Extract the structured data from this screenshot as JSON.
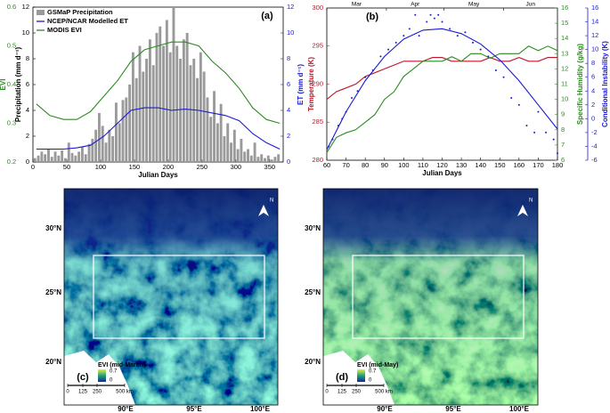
{
  "chart_data": [
    {
      "type": "bar",
      "label": "(a)",
      "xlabel": "Julian Days",
      "xlim": [
        0,
        370
      ],
      "xticks": [
        0,
        50,
        100,
        150,
        200,
        250,
        300,
        350
      ],
      "ylabel": "Precipitation (mm d⁻¹)",
      "ylim": [
        0,
        12
      ],
      "yticks": [
        0,
        2,
        4,
        6,
        8,
        10,
        12
      ],
      "y2label": "ET (mm d⁻¹)",
      "y2lim": [
        0,
        12
      ],
      "y2ticks": [
        0,
        2,
        4,
        6,
        8,
        10,
        12
      ],
      "y3label": "EVI",
      "y3lim": [
        0.2,
        0.6
      ],
      "y3ticks": [
        0.2,
        0.3,
        0.4,
        0.5,
        0.6
      ],
      "axis_colors": {
        "y": "#000000",
        "y2": "#1a1ad6",
        "y3": "#2e8b22"
      },
      "legend": "upper left",
      "series": [
        {
          "name": "GSMaP Precipitation",
          "color": "#9a9a9a",
          "mode": "bar",
          "x": [
            3,
            8,
            13,
            18,
            23,
            28,
            33,
            38,
            43,
            48,
            53,
            58,
            63,
            68,
            73,
            78,
            83,
            88,
            93,
            98,
            103,
            108,
            113,
            118,
            123,
            128,
            133,
            138,
            143,
            148,
            153,
            158,
            163,
            168,
            173,
            178,
            183,
            188,
            193,
            198,
            203,
            208,
            213,
            218,
            223,
            228,
            233,
            238,
            243,
            248,
            253,
            258,
            263,
            268,
            273,
            278,
            283,
            288,
            293,
            298,
            303,
            308,
            313,
            318,
            323,
            328,
            333,
            338,
            343,
            348,
            353,
            358,
            363
          ],
          "values": [
            0.3,
            0.5,
            0.8,
            0.6,
            1.0,
            0.4,
            0.8,
            0.5,
            0.9,
            0.3,
            1.5,
            0.7,
            0.5,
            0.8,
            1.2,
            0.6,
            1.4,
            1.8,
            2.5,
            3.8,
            2.8,
            1.5,
            2.5,
            2.0,
            4.6,
            3.0,
            4.8,
            5.0,
            6.0,
            8.5,
            6.5,
            9.0,
            7.0,
            8.0,
            9.5,
            7.5,
            10.0,
            10.5,
            9.0,
            11.0,
            8.5,
            12.0,
            9.0,
            8.0,
            9.5,
            10.0,
            7.5,
            8.0,
            6.5,
            8.5,
            7.0,
            5.0,
            3.5,
            5.5,
            3.0,
            4.5,
            2.0,
            3.0,
            1.5,
            2.5,
            1.0,
            1.8,
            0.8,
            1.0,
            0.5,
            1.5,
            0.4,
            0.6,
            0.3,
            0.5,
            0.2,
            0.4,
            0.6
          ]
        },
        {
          "name": "NCEP/NCAR Modelled ET",
          "color": "#1a1ad6",
          "mode": "line",
          "axis": "y2",
          "x": [
            5,
            25,
            45,
            65,
            85,
            105,
            125,
            145,
            165,
            185,
            205,
            225,
            245,
            265,
            285,
            305,
            325,
            345,
            365
          ],
          "values": [
            1.0,
            1.0,
            1.0,
            1.1,
            1.3,
            2.0,
            3.0,
            4.0,
            4.2,
            4.2,
            4.0,
            4.1,
            4.0,
            3.8,
            3.6,
            3.2,
            2.2,
            1.5,
            1.0
          ]
        },
        {
          "name": "MODIS EVI",
          "color": "#2e8b22",
          "mode": "line",
          "axis": "y3",
          "x": [
            5,
            25,
            45,
            65,
            85,
            105,
            125,
            145,
            165,
            185,
            205,
            225,
            245,
            265,
            285,
            305,
            325,
            345,
            365
          ],
          "values": [
            0.35,
            0.32,
            0.31,
            0.31,
            0.33,
            0.37,
            0.41,
            0.46,
            0.49,
            0.5,
            0.51,
            0.51,
            0.5,
            0.46,
            0.43,
            0.39,
            0.34,
            0.31,
            0.3
          ]
        }
      ]
    },
    {
      "type": "line",
      "label": "(b)",
      "xlabel": "Julian Days",
      "xlim": [
        60,
        180
      ],
      "xticks": [
        60,
        70,
        80,
        90,
        100,
        110,
        120,
        130,
        140,
        150,
        160,
        170,
        180
      ],
      "month_labels": [
        "Mar",
        "Apr",
        "May",
        "Jun"
      ],
      "month_ticks": [
        60,
        91,
        121,
        152,
        182
      ],
      "ylabel": "Temperature (K)",
      "ylim": [
        280,
        300
      ],
      "yticks": [
        280,
        285,
        290,
        295,
        300
      ],
      "y2label": "Specific Humidity (g/kg)",
      "y2lim": [
        6,
        16
      ],
      "y2ticks": [
        6,
        7,
        8,
        9,
        10,
        11,
        12,
        13,
        14,
        15,
        16
      ],
      "y3label": "Conditional Instability (K)",
      "y3lim": [
        -6,
        16
      ],
      "y3ticks": [
        -6,
        -4,
        -2,
        0,
        2,
        4,
        6,
        8,
        10,
        12,
        14,
        16
      ],
      "axis_colors": {
        "y": "#c0142a",
        "y2": "#2e8b22",
        "y3": "#1a1ad6"
      },
      "series": [
        {
          "color": "#c0142a",
          "mode": "line",
          "x": [
            60,
            65,
            70,
            75,
            80,
            85,
            90,
            95,
            100,
            105,
            110,
            115,
            120,
            125,
            130,
            135,
            140,
            145,
            150,
            155,
            160,
            165,
            170,
            175,
            180
          ],
          "values": [
            288,
            289,
            289.5,
            290,
            291,
            291.5,
            292,
            292.5,
            293,
            293,
            293,
            293.5,
            293.5,
            293,
            293,
            293,
            293,
            293.5,
            293,
            293,
            293.5,
            293,
            293,
            293.5,
            293.5
          ]
        },
        {
          "color": "#2e8b22",
          "mode": "line",
          "axis": "y2",
          "x": [
            60,
            65,
            70,
            75,
            80,
            85,
            90,
            95,
            100,
            105,
            110,
            115,
            120,
            125,
            130,
            135,
            140,
            145,
            150,
            155,
            160,
            165,
            170,
            175,
            180
          ],
          "values": [
            6.5,
            7.5,
            7.8,
            8,
            8.5,
            9,
            10,
            10.5,
            11.5,
            12,
            12.5,
            12.5,
            12.5,
            12.8,
            12.5,
            13,
            13,
            12.7,
            13,
            13,
            13,
            13.5,
            13.2,
            13.5,
            13.2
          ]
        },
        {
          "color": "#1a1ad6",
          "mode": "line",
          "axis": "y3",
          "x": [
            60,
            70,
            80,
            90,
            100,
            110,
            120,
            130,
            140,
            150,
            160,
            170,
            180
          ],
          "values": [
            -4.5,
            1,
            5.5,
            9,
            11.5,
            12.8,
            13,
            12.3,
            10.8,
            8.5,
            5.5,
            2,
            -1.5
          ]
        },
        {
          "color": "#1a1ad6",
          "mode": "markers",
          "axis": "y3",
          "x": [
            61,
            63,
            66,
            68,
            70,
            73,
            76,
            80,
            84,
            88,
            92,
            96,
            100,
            103,
            106,
            108,
            112,
            114,
            116,
            118,
            120,
            124,
            128,
            132,
            136,
            140,
            144,
            148,
            152,
            156,
            160,
            164,
            168,
            170,
            174,
            178,
            180
          ],
          "values": [
            -4,
            -3,
            -1,
            0,
            1,
            3,
            4,
            6,
            7,
            9,
            10,
            11,
            12,
            13,
            15,
            12,
            14,
            15,
            14.5,
            15,
            14,
            13,
            12,
            12.5,
            11,
            10,
            9,
            7,
            6,
            3,
            2,
            -1,
            -2,
            1,
            -2,
            -3,
            -5
          ]
        }
      ]
    }
  ],
  "maps": [
    {
      "label": "(c)",
      "title": "EVI (mid-March)",
      "colorbar_labels": [
        "0.7",
        "0"
      ],
      "lat_labels": [
        "30°N",
        "25°N",
        "20°N"
      ],
      "lon_labels": [
        "90°E",
        "95°E",
        "100°E"
      ],
      "scale_labels": [
        "0",
        "125",
        "250",
        "500 km"
      ],
      "north": "N"
    },
    {
      "label": "(d)",
      "title": "EVI (mid-May)",
      "colorbar_labels": [
        "0.7",
        "0"
      ],
      "lat_labels": [
        "30°N",
        "25°N",
        "20°N"
      ],
      "lon_labels": [
        "90°E",
        "95°E",
        "100°E"
      ],
      "scale_labels": [
        "0",
        "125",
        "250",
        "500 km"
      ],
      "north": "N"
    }
  ]
}
